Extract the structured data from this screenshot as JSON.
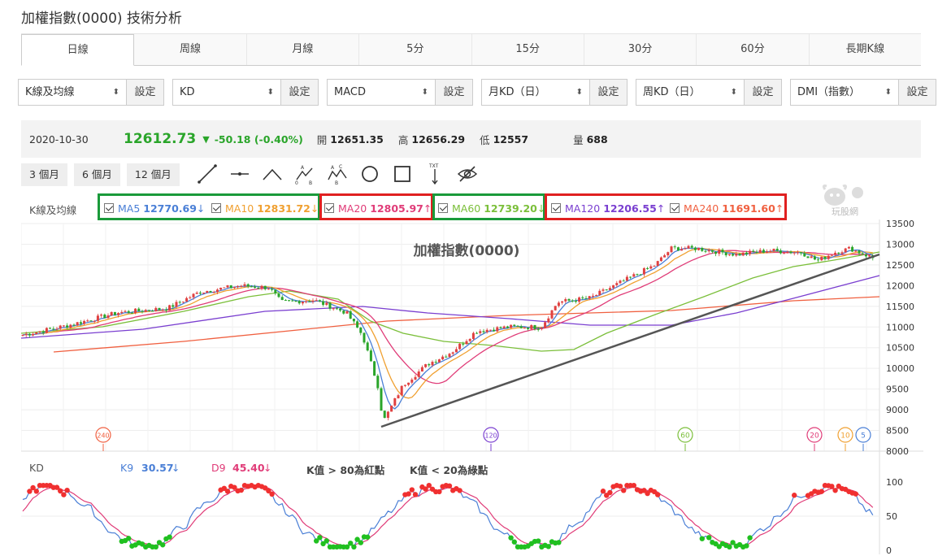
{
  "title": "加權指數(0000) 技術分析",
  "tabs": [
    "日線",
    "周線",
    "月線",
    "5分",
    "15分",
    "30分",
    "60分",
    "長期K線"
  ],
  "selects": [
    {
      "value": "K線及均線",
      "btn": "設定"
    },
    {
      "value": "KD",
      "btn": "設定"
    },
    {
      "value": "MACD",
      "btn": "設定"
    },
    {
      "value": "月KD（日）",
      "btn": "設定"
    },
    {
      "value": "周KD（日）",
      "btn": "設定"
    },
    {
      "value": "DMI（指數）",
      "btn": "設定"
    }
  ],
  "quote": {
    "date": "2020-10-30",
    "close": "12612.73",
    "change": "-50.18 (-0.40%)",
    "open_l": "開",
    "open": "12651.35",
    "high_l": "高",
    "high": "12656.29",
    "low_l": "低",
    "low": "12557",
    "vol_l": "量",
    "vol": "688"
  },
  "periods": [
    "3 個月",
    "6 個月",
    "12 個月"
  ],
  "tools": [
    "line-tool-icon",
    "horizontal-line-icon",
    "angle-icon",
    "abc-pattern-icon",
    "abcd-pattern-icon",
    "circle-icon",
    "rectangle-icon",
    "text-icon",
    "eye-off-icon"
  ],
  "ma_label": "K線及均線",
  "ma": [
    {
      "name": "MA5",
      "value": "12770.69",
      "dir": "↓",
      "color": "#4a7fd6"
    },
    {
      "name": "MA10",
      "value": "12831.72",
      "dir": "↓",
      "color": "#f0a030"
    },
    {
      "name": "MA20",
      "value": "12805.97",
      "dir": "↑",
      "color": "#e03c78"
    },
    {
      "name": "MA60",
      "value": "12739.20",
      "dir": "↓",
      "color": "#7bbf3a"
    },
    {
      "name": "MA120",
      "value": "12206.55",
      "dir": "↑",
      "color": "#7a3fd0"
    },
    {
      "name": "MA240",
      "value": "11691.60",
      "dir": "↑",
      "color": "#f06040"
    }
  ],
  "logo_text": "玩股網",
  "chart_title": "加權指數(0000)",
  "y_ticks": [
    "13500",
    "13000",
    "12500",
    "12000",
    "11500",
    "11000",
    "10500",
    "10000",
    "9500",
    "9000",
    "8500",
    "8000"
  ],
  "markers": [
    {
      "label": "240",
      "color": "#f06040"
    },
    {
      "label": "120",
      "color": "#7a3fd0"
    },
    {
      "label": "60",
      "color": "#7bbf3a"
    },
    {
      "label": "20",
      "color": "#e03c78"
    },
    {
      "label": "10",
      "color": "#f0a030"
    },
    {
      "label": "5",
      "color": "#4a7fd6"
    }
  ],
  "kd": {
    "label": "KD",
    "k_label": "K9",
    "k": "30.57",
    "k_dir": "↓",
    "d_label": "D9",
    "d": "45.40",
    "d_dir": "↓",
    "note1": "K值 > 80為紅點",
    "note2": "K值 < 20為綠點",
    "ticks": [
      "100",
      "50",
      "0"
    ]
  }
}
